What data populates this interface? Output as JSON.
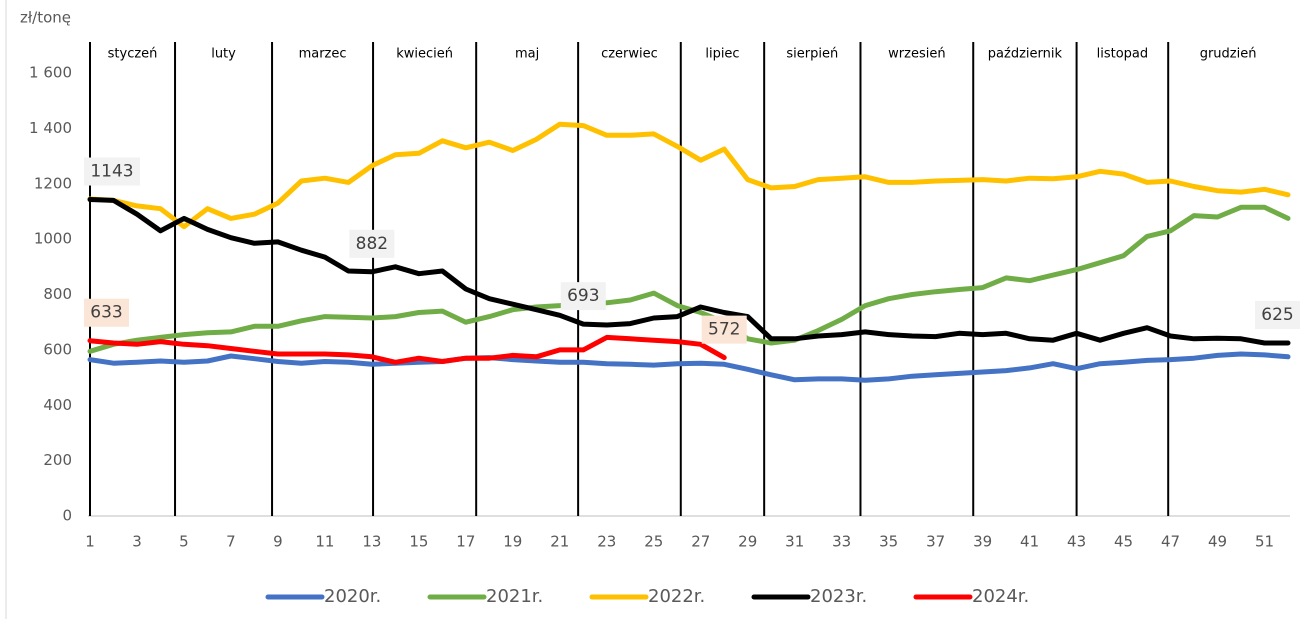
{
  "chart_data": {
    "type": "line",
    "y_label": "zł/tonę",
    "x": [
      1,
      2,
      3,
      4,
      5,
      6,
      7,
      8,
      9,
      10,
      11,
      12,
      13,
      14,
      15,
      16,
      17,
      18,
      19,
      20,
      21,
      22,
      23,
      24,
      25,
      26,
      27,
      28,
      29,
      30,
      31,
      32,
      33,
      34,
      35,
      36,
      37,
      38,
      39,
      40,
      41,
      42,
      43,
      44,
      45,
      46,
      47,
      48,
      49,
      50,
      51,
      52
    ],
    "xlim": [
      1,
      52
    ],
    "xticks": [
      1,
      3,
      5,
      7,
      9,
      11,
      13,
      15,
      17,
      19,
      21,
      23,
      25,
      27,
      29,
      31,
      33,
      35,
      37,
      39,
      41,
      43,
      45,
      47,
      49,
      51
    ],
    "ylim": [
      0,
      1600
    ],
    "yticks": [
      0,
      200,
      400,
      600,
      800,
      1000,
      1200,
      {
        "value": 1400,
        "label": "1 400"
      },
      {
        "value": 1600,
        "label": "1 600"
      }
    ],
    "yticks_fix": null,
    "months": [
      "styczeń",
      "luty",
      "marzec",
      "kwiecień",
      "maj",
      "czerwiec",
      "lipiec",
      "sierpień",
      "wrzesień",
      "październik",
      "listopad",
      "grudzień"
    ],
    "month_bounds": [
      1,
      4.62,
      8.75,
      13.05,
      17.44,
      21.78,
      26.15,
      29.7,
      33.8,
      38.6,
      43.0,
      46.9,
      52
    ],
    "series": [
      {
        "name": "2020r.",
        "color": "#4472c4",
        "values": [
          565,
          552,
          555,
          560,
          555,
          560,
          578,
          568,
          558,
          552,
          558,
          555,
          548,
          552,
          555,
          558,
          570,
          572,
          565,
          560,
          555,
          555,
          550,
          548,
          545,
          550,
          552,
          548,
          530,
          510,
          492,
          495,
          495,
          490,
          495,
          505,
          510,
          515,
          520,
          525,
          535,
          550,
          532,
          550,
          555,
          562,
          565,
          570,
          580,
          585,
          582,
          575
        ]
      },
      {
        "name": "2021r.",
        "color": "#70ad47",
        "values": [
          595,
          620,
          635,
          645,
          655,
          662,
          665,
          685,
          685,
          705,
          720,
          718,
          715,
          720,
          735,
          740,
          700,
          720,
          745,
          755,
          760,
          770,
          770,
          780,
          805,
          760,
          735,
          700,
          640,
          625,
          635,
          670,
          710,
          760,
          785,
          800,
          810,
          818,
          825,
          860,
          850,
          870,
          890,
          915,
          940,
          1010,
          1030,
          1085,
          1080,
          1115,
          1115,
          1075
        ]
      },
      {
        "name": "2022r.",
        "color": "#ffc000",
        "values": [
          1145,
          1140,
          1120,
          1110,
          1045,
          1110,
          1075,
          1090,
          1130,
          1210,
          1220,
          1205,
          1265,
          1305,
          1310,
          1355,
          1330,
          1350,
          1320,
          1360,
          1415,
          1410,
          1375,
          1375,
          1380,
          1335,
          1285,
          1325,
          1215,
          1185,
          1190,
          1215,
          1220,
          1225,
          1205,
          1205,
          1210,
          1212,
          1215,
          1210,
          1220,
          1218,
          1225,
          1245,
          1235,
          1205,
          1210,
          1190,
          1175,
          1170,
          1180,
          1160
        ]
      },
      {
        "name": "2023r.",
        "color": "#000000",
        "values": [
          1143,
          1140,
          1090,
          1030,
          1075,
          1035,
          1005,
          985,
          990,
          960,
          935,
          885,
          882,
          900,
          875,
          885,
          820,
          785,
          765,
          745,
          725,
          693,
          690,
          695,
          715,
          720,
          755,
          735,
          720,
          640,
          640,
          650,
          655,
          665,
          655,
          650,
          648,
          660,
          655,
          660,
          640,
          635,
          660,
          635,
          660,
          680,
          650,
          640,
          642,
          640,
          625,
          625
        ]
      },
      {
        "name": "2024r.",
        "color": "#ff0000",
        "values": [
          633,
          625,
          620,
          630,
          620,
          615,
          605,
          595,
          585,
          585,
          585,
          582,
          575,
          555,
          570,
          558,
          570,
          570,
          580,
          575,
          600,
          600,
          645,
          640,
          635,
          630,
          620,
          572,
          null,
          null,
          null,
          null,
          null,
          null,
          null,
          null,
          null,
          null,
          null,
          null,
          null,
          null,
          null,
          null,
          null,
          null,
          null,
          null,
          null,
          null,
          null,
          null
        ]
      }
    ],
    "annotations": [
      {
        "label": "1143",
        "series": 3,
        "x": 1,
        "color": "#f2f2f2"
      },
      {
        "label": "882",
        "series": 3,
        "x": 13,
        "color": "#f2f2f2"
      },
      {
        "label": "693",
        "series": 3,
        "x": 22,
        "color": "#f2f2f2"
      },
      {
        "label": "625",
        "series": 3,
        "x": 52,
        "color": "#f2f2f2"
      },
      {
        "label": "633",
        "series": 4,
        "x": 1,
        "color": "#fbe5d6"
      },
      {
        "label": "572",
        "series": 4,
        "x": 28,
        "color": "#fbe5d6"
      }
    ]
  }
}
